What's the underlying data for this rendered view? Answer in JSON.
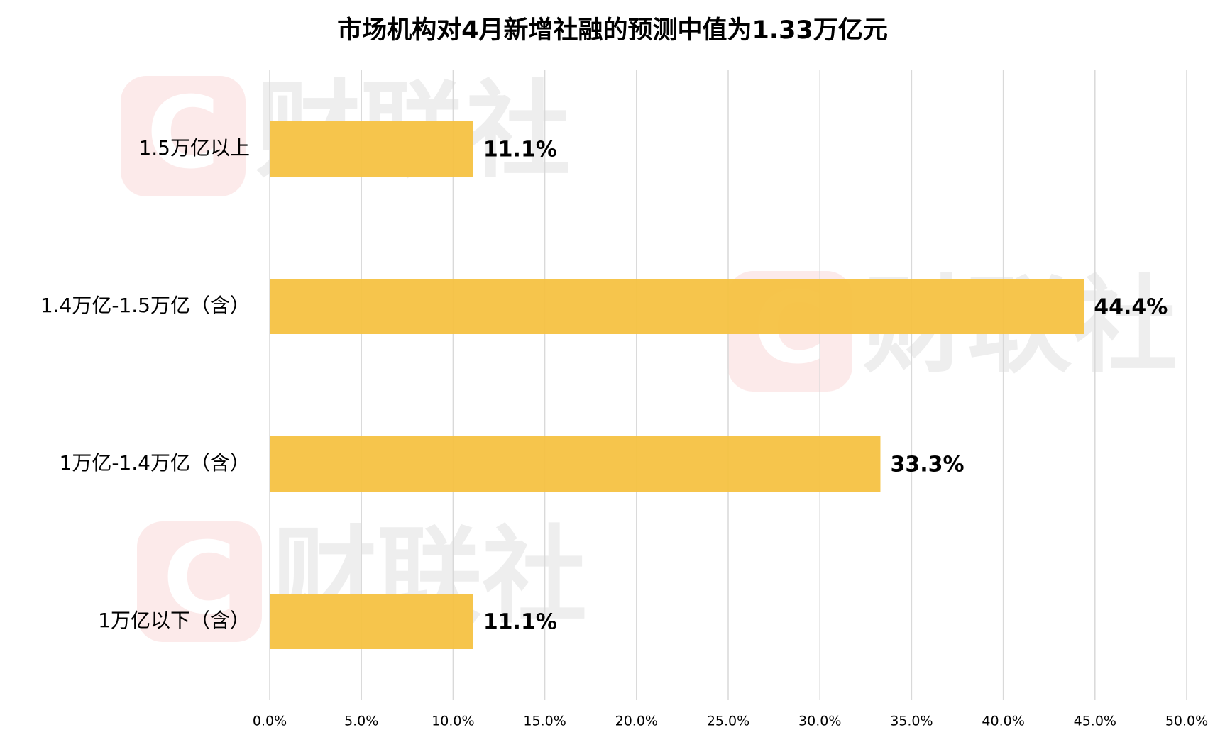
{
  "chart_data": {
    "type": "hbar",
    "title": "市场机构对4月新增社融的预测中值为1.33万亿元",
    "watermark": "财联社",
    "categories": [
      "1.5万亿以上",
      "1.4万亿-1.5万亿（含）",
      "1万亿-1.4万亿（含）",
      "1万亿以下（含）"
    ],
    "values": [
      11.1,
      44.4,
      33.3,
      11.1
    ],
    "value_labels": [
      "11.1%",
      "44.4%",
      "33.3%",
      "11.1%"
    ],
    "color": "#f5c242",
    "xlim": [
      0,
      50
    ],
    "xticks": [
      {
        "value": 0,
        "label": "0.0%"
      },
      {
        "value": 5,
        "label": "5.0%"
      },
      {
        "value": 10,
        "label": "10.0%"
      },
      {
        "value": 15,
        "label": "15.0%"
      },
      {
        "value": 20,
        "label": "20.0%"
      },
      {
        "value": 25,
        "label": "25.0%"
      },
      {
        "value": 30,
        "label": "30.0%"
      },
      {
        "value": 35,
        "label": "35.0%"
      },
      {
        "value": 40,
        "label": "40.0%"
      },
      {
        "value": 45,
        "label": "45.0%"
      },
      {
        "value": 50,
        "label": "50.0%"
      }
    ],
    "grid": true
  }
}
